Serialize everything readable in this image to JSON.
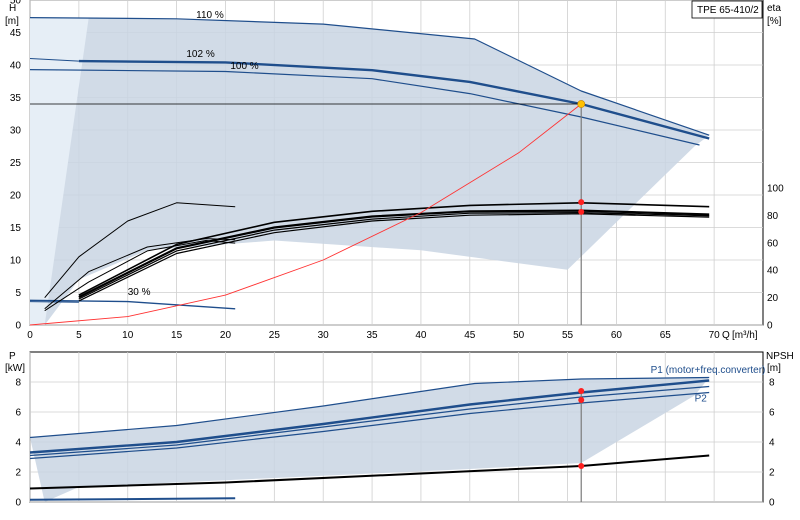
{
  "chart_data": [
    {
      "type": "line",
      "id": "qh",
      "title": "TPE 65-410/2",
      "ylabel": "H",
      "yunit": "[m]",
      "y2label": "eta",
      "y2unit": "[%]",
      "xlabel": "Q",
      "xunit": "[m³/h]",
      "xlim": [
        0,
        75
      ],
      "ylim": [
        0,
        50
      ],
      "y2lim": [
        0,
        100
      ],
      "xticks": [
        0,
        5,
        10,
        15,
        20,
        25,
        30,
        35,
        40,
        45,
        50,
        55,
        60,
        65,
        70
      ],
      "yticks": [
        0,
        5,
        10,
        15,
        20,
        25,
        30,
        35,
        40,
        45,
        50
      ],
      "y2ticks": [
        0,
        20,
        40,
        60,
        80,
        100
      ],
      "grid": true,
      "duty_point": {
        "q": 56.4,
        "h": 34
      },
      "curve_labels": [
        {
          "text": "110 %",
          "x": 17,
          "y": 47.2
        },
        {
          "text": "102 %",
          "x": 16,
          "y": 41.2
        },
        {
          "text": "100 %",
          "x": 20.5,
          "y": 39.4
        },
        {
          "text": "30 %",
          "x": 10,
          "y": 4.6
        }
      ],
      "series": [
        {
          "id": "h110",
          "points": [
            [
              0,
              47.3
            ],
            [
              15,
              47.1
            ],
            [
              30,
              46.3
            ],
            [
              45.5,
              44
            ],
            [
              56.4,
              36
            ],
            [
              69.5,
              29.2
            ]
          ]
        },
        {
          "id": "h102",
          "points": [
            [
              5,
              40.6
            ],
            [
              20,
              40.4
            ],
            [
              35,
              39.2
            ],
            [
              45,
              37.4
            ],
            [
              56.4,
              34
            ],
            [
              69.5,
              28.7
            ]
          ]
        },
        {
          "id": "h100",
          "points": [
            [
              0,
              39.3
            ],
            [
              20,
              39
            ],
            [
              35,
              37.9
            ],
            [
              45,
              35.6
            ],
            [
              56.4,
              32
            ],
            [
              68.5,
              27.7
            ]
          ]
        },
        {
          "id": "h102-thin",
          "points": [
            [
              0,
              41
            ],
            [
              5,
              40.6
            ]
          ]
        },
        {
          "id": "h30",
          "points": [
            [
              0,
              3.8
            ],
            [
              10,
              3.6
            ],
            [
              21,
              2.5
            ]
          ]
        },
        {
          "id": "h30-lead",
          "points": [
            [
              0,
              3.6
            ],
            [
              5,
              3.5
            ]
          ]
        },
        {
          "id": "eta-110",
          "points": [
            [
              5,
              4.6
            ],
            [
              15,
              12.4
            ],
            [
              25,
              15.8
            ],
            [
              35,
              17.5
            ],
            [
              45,
              18.4
            ],
            [
              56.4,
              18.8
            ],
            [
              69.5,
              18.2
            ]
          ]
        },
        {
          "id": "eta-102a",
          "points": [
            [
              5,
              4.3
            ],
            [
              15,
              11.8
            ],
            [
              25,
              15
            ],
            [
              35,
              16.7
            ],
            [
              45,
              17.5
            ],
            [
              56.4,
              17.6
            ],
            [
              69.5,
              17
            ]
          ]
        },
        {
          "id": "eta-102b",
          "points": [
            [
              5,
              4
            ],
            [
              15,
              11.4
            ],
            [
              25,
              14.6
            ],
            [
              35,
              16.3
            ],
            [
              45,
              17.2
            ],
            [
              56.4,
              17.3
            ],
            [
              69.5,
              16.8
            ]
          ]
        },
        {
          "id": "eta-100",
          "points": [
            [
              5,
              3.7
            ],
            [
              15,
              11
            ],
            [
              25,
              14.2
            ],
            [
              35,
              16
            ],
            [
              45,
              16.9
            ],
            [
              56.4,
              17.1
            ],
            [
              69.5,
              16.6
            ]
          ]
        },
        {
          "id": "eta-30a",
          "points": [
            [
              1.5,
              4.2
            ],
            [
              5,
              10.5
            ],
            [
              10,
              16
            ],
            [
              15,
              18.8
            ],
            [
              21,
              18.2
            ]
          ]
        },
        {
          "id": "eta-30b",
          "points": [
            [
              1.5,
              2.2
            ],
            [
              6,
              6.6
            ],
            [
              12,
              11.4
            ],
            [
              18,
              13
            ],
            [
              21,
              12.6
            ]
          ]
        },
        {
          "id": "eta-30c",
          "points": [
            [
              1.5,
              2.5
            ],
            [
              6,
              8.2
            ],
            [
              12,
              12
            ],
            [
              18,
              13.3
            ],
            [
              21,
              13.1
            ]
          ]
        },
        {
          "id": "system",
          "points": [
            [
              0,
              0
            ],
            [
              10,
              1.3
            ],
            [
              20,
              4.6
            ],
            [
              30,
              10
            ],
            [
              40,
              17.3
            ],
            [
              50,
              26.5
            ],
            [
              56.4,
              34
            ]
          ]
        }
      ],
      "band_upper": [
        [
          0,
          47.3
        ],
        [
          15,
          47.1
        ],
        [
          30,
          46.3
        ],
        [
          45.5,
          44
        ],
        [
          56.4,
          36
        ],
        [
          69.5,
          29.2
        ]
      ],
      "band_lower": [
        [
          1.5,
          0
        ],
        [
          5,
          7
        ],
        [
          12,
          11.5
        ],
        [
          25,
          13
        ],
        [
          40,
          11.5
        ],
        [
          55,
          8.5
        ],
        [
          68,
          27.5
        ]
      ],
      "red_markers": [
        [
          56.4,
          18.9
        ],
        [
          56.4,
          17.4
        ]
      ]
    },
    {
      "type": "line",
      "id": "qp",
      "ylabel": "P",
      "yunit": "[kW]",
      "y2label": "NPSH",
      "y2unit": "[m]",
      "xlim": [
        0,
        75
      ],
      "ylim": [
        0,
        10
      ],
      "yticks": [
        0,
        2,
        4,
        6,
        8
      ],
      "y2ticks": [
        0,
        2,
        4,
        6,
        8
      ],
      "grid": true,
      "legend": [
        {
          "text": "P1 (motor+freq.converter)",
          "x": 63.5,
          "y": 8.6
        },
        {
          "text": "P2",
          "x": 68,
          "y": 6.7
        }
      ],
      "series": [
        {
          "id": "p110",
          "points": [
            [
              0,
              4.3
            ],
            [
              15,
              5.1
            ],
            [
              30,
              6.4
            ],
            [
              45.5,
              7.9
            ],
            [
              56.4,
              8.2
            ],
            [
              69.5,
              8.3
            ]
          ]
        },
        {
          "id": "p1-main",
          "points": [
            [
              0,
              3.3
            ],
            [
              15,
              4
            ],
            [
              30,
              5.2
            ],
            [
              45,
              6.5
            ],
            [
              56.4,
              7.3
            ],
            [
              69.5,
              8.1
            ]
          ]
        },
        {
          "id": "p1-102",
          "points": [
            [
              0,
              3.1
            ],
            [
              15,
              3.8
            ],
            [
              30,
              5
            ],
            [
              45,
              6.2
            ],
            [
              56.4,
              7
            ],
            [
              69.5,
              7.7
            ]
          ]
        },
        {
          "id": "p2",
          "points": [
            [
              0,
              2.9
            ],
            [
              15,
              3.6
            ],
            [
              30,
              4.7
            ],
            [
              45,
              5.9
            ],
            [
              56.4,
              6.6
            ],
            [
              69.5,
              7.3
            ]
          ]
        },
        {
          "id": "npsh",
          "points": [
            [
              0,
              0.9
            ],
            [
              20,
              1.3
            ],
            [
              40,
              1.9
            ],
            [
              56.4,
              2.4
            ],
            [
              69.5,
              3.1
            ]
          ]
        },
        {
          "id": "p30",
          "points": [
            [
              0,
              0.15
            ],
            [
              21,
              0.25
            ]
          ]
        }
      ],
      "band_upper": [
        [
          0,
          4.3
        ],
        [
          15,
          5.1
        ],
        [
          30,
          6.4
        ],
        [
          45.5,
          7.9
        ],
        [
          56.4,
          8.2
        ],
        [
          69.5,
          8.3
        ]
      ],
      "band_lower": [
        [
          1.5,
          0
        ],
        [
          5,
          1
        ],
        [
          25,
          1.6
        ],
        [
          45,
          2.2
        ],
        [
          56.4,
          2.6
        ],
        [
          68,
          7.1
        ]
      ],
      "red_markers": [
        [
          56.4,
          7.4
        ],
        [
          56.4,
          6.8
        ],
        [
          56.4,
          2.4
        ]
      ]
    }
  ],
  "colors": {
    "band": "#c9d5e3",
    "band_light": "#e6eef6",
    "curve_blue": "#1f4e8c",
    "system": "#ff3333",
    "marker": "#ff2020",
    "duty": "#ffc000",
    "grid": "#cfcfcf"
  }
}
